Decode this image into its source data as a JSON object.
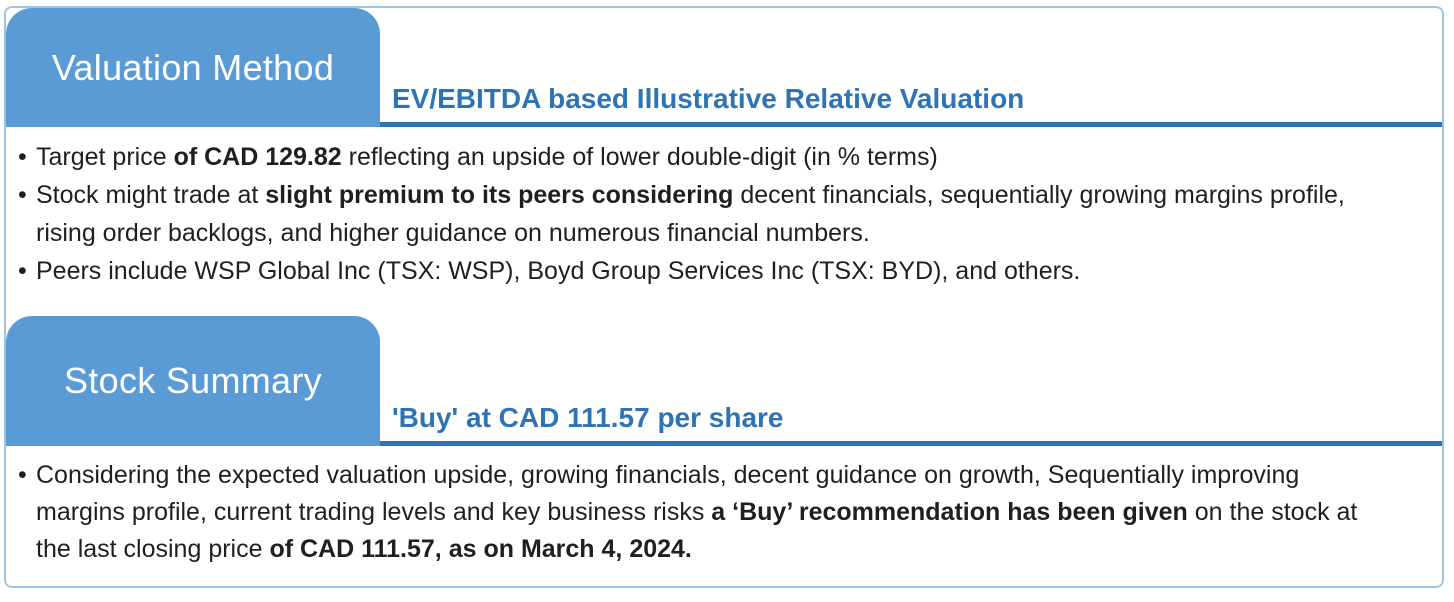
{
  "palette": {
    "tab_fill": "#5B9BD5",
    "heading_text": "#2E74B5",
    "rule": "#2E74B5",
    "frame_border": "#9CC2E5",
    "body_text": "#1F1F1F"
  },
  "sections": [
    {
      "tab_label": "Valuation Method",
      "heading": "EV/EBITDA based Illustrative Relative Valuation",
      "bullets": [
        {
          "segments": [
            {
              "text": "Target price ",
              "bold": false
            },
            {
              "text": "of CAD 129.82",
              "bold": true
            },
            {
              "text": " reflecting an upside of lower double-digit (in % terms)",
              "bold": false
            }
          ]
        },
        {
          "segments": [
            {
              "text": "Stock might trade at ",
              "bold": false
            },
            {
              "text": "slight premium to its peers considering",
              "bold": true
            },
            {
              "text": " decent financials, sequentially growing margins profile, rising order backlogs, and higher guidance on numerous financial numbers.",
              "bold": false
            }
          ]
        },
        {
          "segments": [
            {
              "text": "Peers include WSP Global Inc (TSX: WSP), Boyd Group Services Inc (TSX: BYD), and others.",
              "bold": false
            }
          ]
        }
      ]
    },
    {
      "tab_label": "Stock Summary",
      "heading": "'Buy' at CAD 111.57 per share",
      "bullets": [
        {
          "segments": [
            {
              "text": "Considering the expected valuation upside, growing financials, decent guidance on growth, Sequentially improving margins profile, current trading levels and key business risks ",
              "bold": false
            },
            {
              "text": "a ‘Buy’ recommendation has been given",
              "bold": true
            },
            {
              "text": " on the stock at the last closing price ",
              "bold": false
            },
            {
              "text": "of CAD 111.57, as on March 4, 2024.",
              "bold": true
            }
          ]
        }
      ]
    }
  ]
}
